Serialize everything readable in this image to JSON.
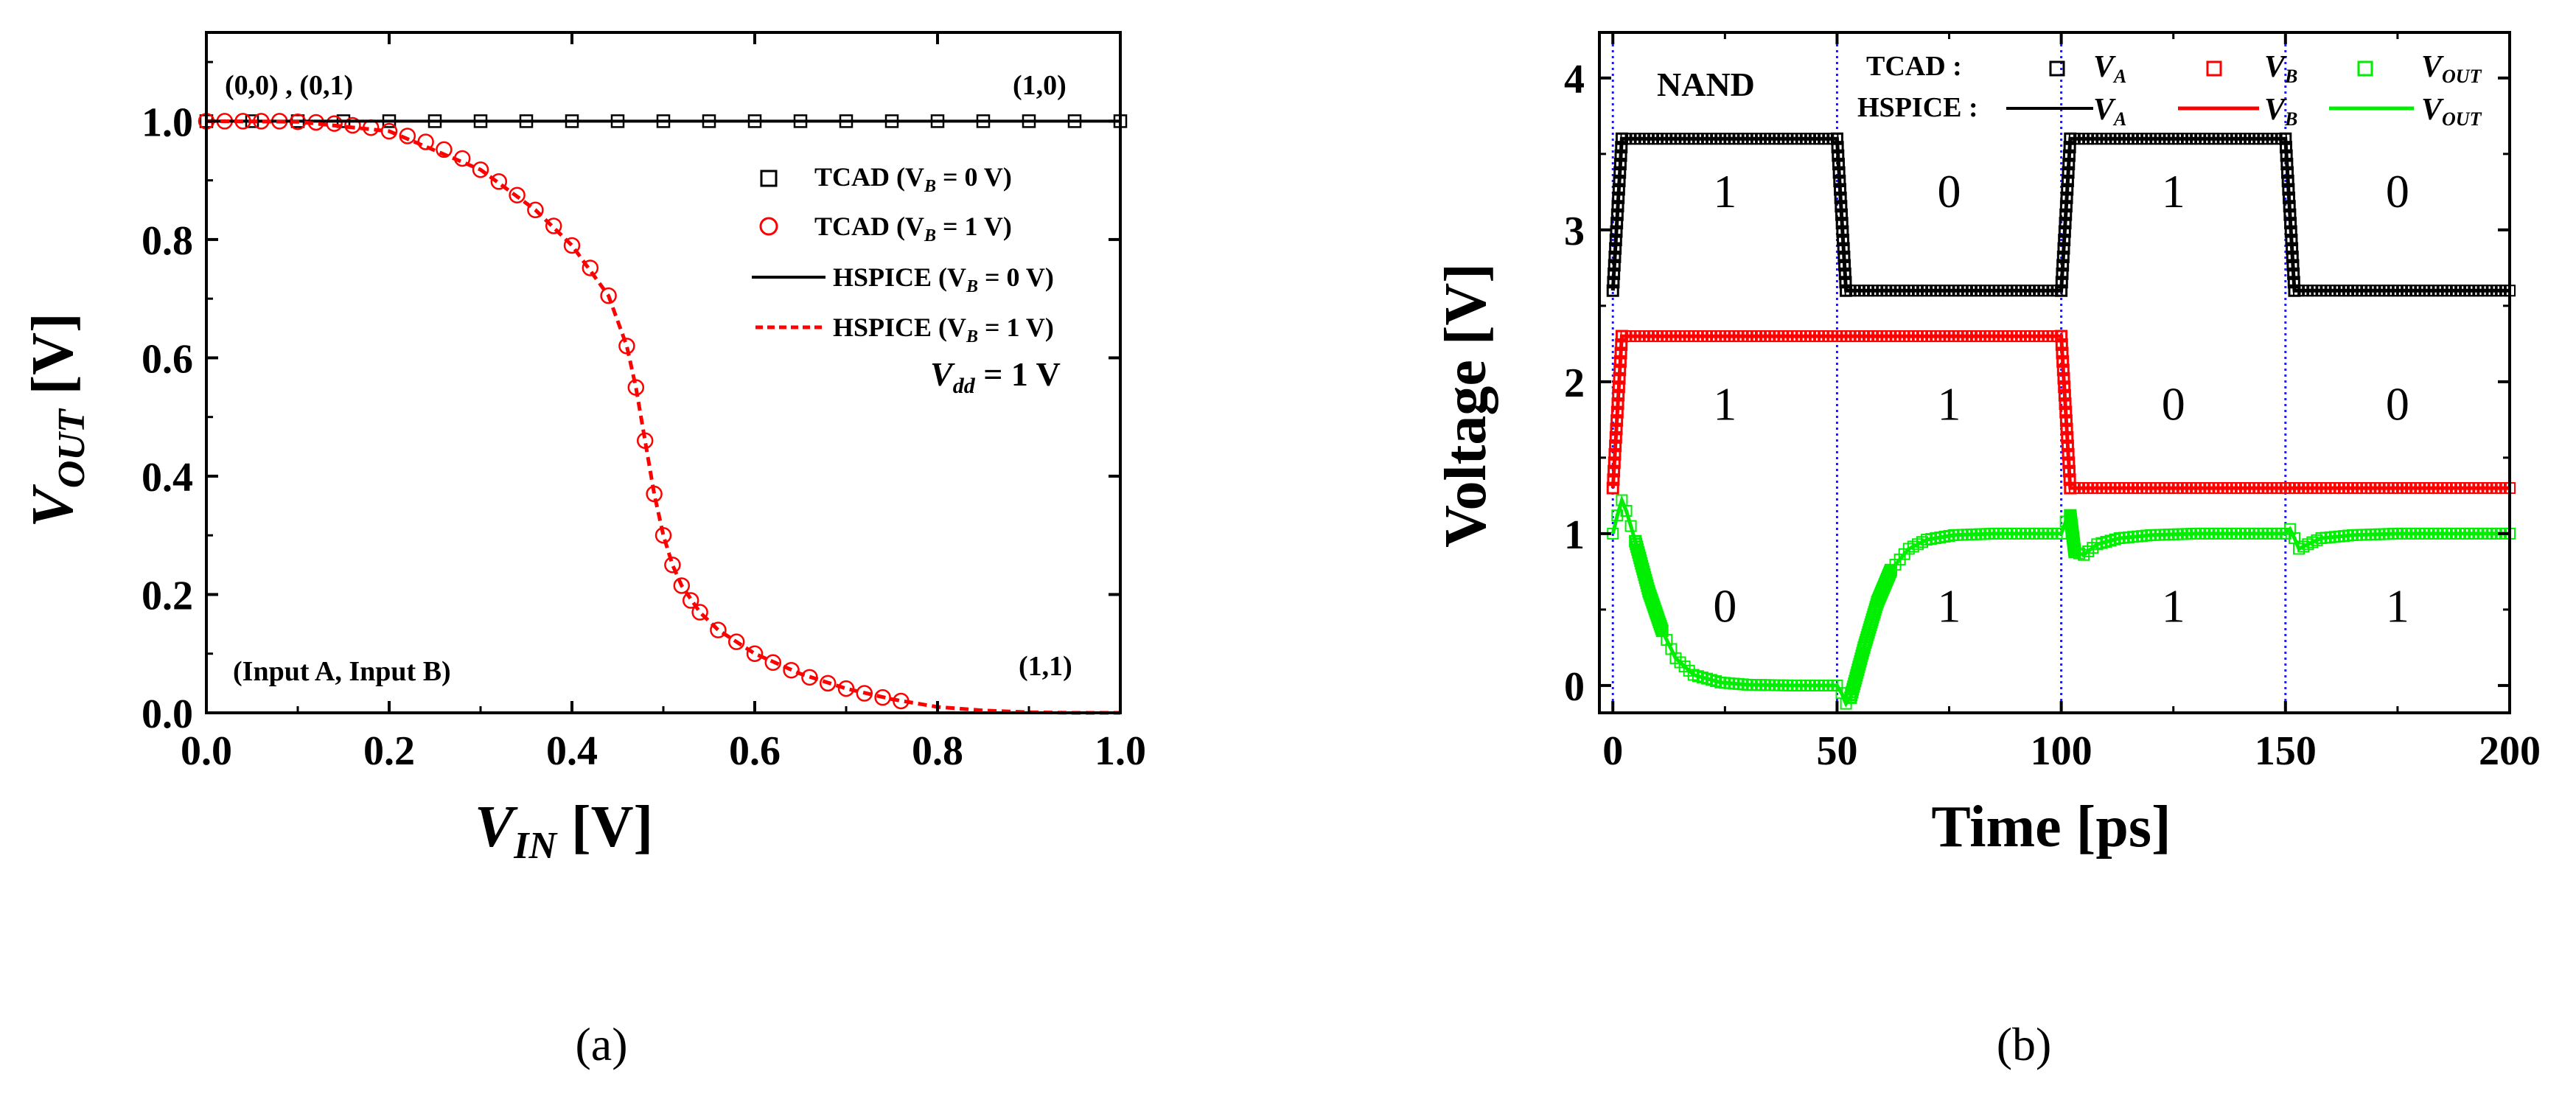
{
  "chart_data": [
    {
      "type": "scatter",
      "panel_label": "(a)",
      "xlabel_main": "V",
      "xlabel_sub": "IN",
      "xlabel_unit": " [V]",
      "ylabel_main": "V",
      "ylabel_sub": "OUT",
      "ylabel_unit": " [V]",
      "xlim": [
        0.0,
        1.0
      ],
      "ylim": [
        0.0,
        1.15
      ],
      "xticks": [
        0.0,
        0.2,
        0.4,
        0.6,
        0.8,
        1.0
      ],
      "xtick_labels": [
        "0.0",
        "0.2",
        "0.4",
        "0.6",
        "0.8",
        "1.0"
      ],
      "yticks": [
        0.0,
        0.2,
        0.4,
        0.6,
        0.8,
        1.0
      ],
      "ytick_labels": [
        "0.0",
        "0.2",
        "0.4",
        "0.6",
        "0.8",
        "1.0"
      ],
      "annotations": {
        "top_left": "(0,0) , (0,1)",
        "top_right": "(1,0)",
        "bottom_left": "(Input A, Input B)",
        "bottom_right": "(1,1)",
        "vdd_main": "V",
        "vdd_sub": "dd",
        "vdd_rest": " = 1 V"
      },
      "legend": [
        {
          "label_pre": "TCAD   (V",
          "label_sub": "B",
          "label_post": " = 0 V)",
          "marker": "square",
          "line": "none",
          "color": "#000000"
        },
        {
          "label_pre": "TCAD   (V",
          "label_sub": "B",
          "label_post": " = 1 V)",
          "marker": "circle",
          "line": "none",
          "color": "#ff0000"
        },
        {
          "label_pre": "HSPICE (V",
          "label_sub": "B",
          "label_post": " = 0 V)",
          "marker": "none",
          "line": "solid",
          "color": "#000000"
        },
        {
          "label_pre": "HSPICE (V",
          "label_sub": "B",
          "label_post": " = 1 V)",
          "marker": "none",
          "line": "dashed",
          "color": "#ff0000"
        }
      ],
      "series": [
        {
          "name": "TCAD (VB = 0 V)",
          "style": "square",
          "color": "#000000",
          "x": [
            0.0,
            0.05,
            0.1,
            0.15,
            0.2,
            0.25,
            0.3,
            0.35,
            0.4,
            0.45,
            0.5,
            0.55,
            0.6,
            0.65,
            0.7,
            0.75,
            0.8,
            0.85,
            0.9,
            0.95,
            1.0
          ],
          "y": [
            1.0,
            1.0,
            1.0,
            1.0,
            1.0,
            1.0,
            1.0,
            1.0,
            1.0,
            1.0,
            1.0,
            1.0,
            1.0,
            1.0,
            1.0,
            1.0,
            1.0,
            1.0,
            1.0,
            1.0,
            1.0
          ]
        },
        {
          "name": "TCAD (VB = 1 V)",
          "style": "circle",
          "color": "#ff0000",
          "x": [
            0.0,
            0.02,
            0.04,
            0.06,
            0.08,
            0.1,
            0.12,
            0.14,
            0.16,
            0.18,
            0.2,
            0.22,
            0.24,
            0.26,
            0.28,
            0.3,
            0.32,
            0.34,
            0.36,
            0.38,
            0.4,
            0.42,
            0.44,
            0.46,
            0.47,
            0.48,
            0.49,
            0.5,
            0.51,
            0.52,
            0.53,
            0.54,
            0.56,
            0.58,
            0.6,
            0.62,
            0.64,
            0.66,
            0.68,
            0.7,
            0.72,
            0.74,
            0.76
          ],
          "y": [
            1.0,
            1.0,
            1.0,
            1.0,
            1.0,
            0.999,
            0.998,
            0.996,
            0.993,
            0.989,
            0.983,
            0.975,
            0.965,
            0.952,
            0.937,
            0.918,
            0.898,
            0.875,
            0.85,
            0.823,
            0.79,
            0.752,
            0.705,
            0.62,
            0.55,
            0.46,
            0.37,
            0.3,
            0.25,
            0.215,
            0.19,
            0.17,
            0.14,
            0.12,
            0.1,
            0.085,
            0.072,
            0.06,
            0.05,
            0.041,
            0.033,
            0.026,
            0.02
          ]
        },
        {
          "name": "HSPICE (VB = 0 V)",
          "style": "solid",
          "color": "#000000",
          "x": [
            0.0,
            1.0
          ],
          "y": [
            1.0,
            1.0
          ]
        },
        {
          "name": "HSPICE (VB = 1 V)",
          "style": "dashed",
          "color": "#ff0000",
          "x": [
            0.0,
            0.1,
            0.2,
            0.3,
            0.36,
            0.4,
            0.44,
            0.46,
            0.47,
            0.48,
            0.49,
            0.5,
            0.51,
            0.52,
            0.54,
            0.56,
            0.6,
            0.65,
            0.7,
            0.75,
            0.8,
            0.85,
            0.9,
            0.95,
            1.0
          ],
          "y": [
            1.0,
            0.999,
            0.983,
            0.918,
            0.85,
            0.79,
            0.705,
            0.62,
            0.55,
            0.46,
            0.37,
            0.3,
            0.25,
            0.215,
            0.17,
            0.14,
            0.1,
            0.066,
            0.041,
            0.023,
            0.01,
            0.004,
            0.001,
            0.0,
            0.0
          ]
        }
      ]
    },
    {
      "type": "line",
      "panel_label": "(b)",
      "xlabel": "Time [ps]",
      "ylabel": "Voltage [V]",
      "xlim": [
        -3,
        200
      ],
      "ylim": [
        -0.18,
        4.3
      ],
      "xticks": [
        0,
        50,
        100,
        150,
        200
      ],
      "xtick_labels": [
        "0",
        "50",
        "100",
        "150",
        "200"
      ],
      "yticks": [
        0,
        1,
        2,
        3,
        4
      ],
      "ytick_labels": [
        "0",
        "1",
        "2",
        "3",
        "4"
      ],
      "vlines": [
        0,
        50,
        100,
        150
      ],
      "gate_label": "NAND",
      "legend": {
        "tcad_label": "TCAD :",
        "hspice_label": "HSPICE :",
        "entries": [
          {
            "main": "V",
            "sub": "A",
            "color": "#000000"
          },
          {
            "main": "V",
            "sub": "B",
            "color": "#ff0000"
          },
          {
            "main": "V",
            "sub": "OUT",
            "color": "#00ee00"
          }
        ]
      },
      "segment_labels": [
        {
          "x": 25,
          "y": 3.15,
          "text": "1"
        },
        {
          "x": 75,
          "y": 3.15,
          "text": "0"
        },
        {
          "x": 125,
          "y": 3.15,
          "text": "1"
        },
        {
          "x": 175,
          "y": 3.15,
          "text": "0"
        },
        {
          "x": 25,
          "y": 1.75,
          "text": "1"
        },
        {
          "x": 75,
          "y": 1.75,
          "text": "1"
        },
        {
          "x": 125,
          "y": 1.75,
          "text": "0"
        },
        {
          "x": 175,
          "y": 1.75,
          "text": "0"
        },
        {
          "x": 25,
          "y": 0.42,
          "text": "0"
        },
        {
          "x": 75,
          "y": 0.42,
          "text": "1"
        },
        {
          "x": 125,
          "y": 0.42,
          "text": "1"
        },
        {
          "x": 175,
          "y": 0.42,
          "text": "1"
        }
      ],
      "series": [
        {
          "name": "VA",
          "color": "#000000",
          "points": [
            [
              0,
              2.6
            ],
            [
              2,
              3.6
            ],
            [
              50,
              3.6
            ],
            [
              52,
              2.6
            ],
            [
              100,
              2.6
            ],
            [
              102,
              3.6
            ],
            [
              150,
              3.6
            ],
            [
              152,
              2.6
            ],
            [
              200,
              2.6
            ]
          ]
        },
        {
          "name": "VB",
          "color": "#ff0000",
          "points": [
            [
              0,
              1.3
            ],
            [
              2,
              2.3
            ],
            [
              100,
              2.3
            ],
            [
              102,
              1.3
            ],
            [
              200,
              1.3
            ]
          ]
        },
        {
          "name": "VOUT",
          "color": "#00ee00",
          "points": [
            [
              0,
              1.0
            ],
            [
              1,
              1.12
            ],
            [
              2,
              1.22
            ],
            [
              3,
              1.15
            ],
            [
              5,
              0.95
            ],
            [
              8,
              0.62
            ],
            [
              11,
              0.36
            ],
            [
              14,
              0.18
            ],
            [
              18,
              0.07
            ],
            [
              24,
              0.02
            ],
            [
              30,
              0.005
            ],
            [
              40,
              0.0
            ],
            [
              50,
              0.0
            ],
            [
              51,
              -0.05
            ],
            [
              52,
              -0.12
            ],
            [
              53,
              -0.08
            ],
            [
              56,
              0.25
            ],
            [
              59,
              0.55
            ],
            [
              62,
              0.76
            ],
            [
              66,
              0.9
            ],
            [
              70,
              0.96
            ],
            [
              76,
              0.99
            ],
            [
              85,
              1.0
            ],
            [
              100,
              1.0
            ],
            [
              101,
              1.08
            ],
            [
              102,
              1.12
            ],
            [
              103,
              0.88
            ],
            [
              105,
              0.86
            ],
            [
              108,
              0.93
            ],
            [
              113,
              0.97
            ],
            [
              120,
              0.99
            ],
            [
              130,
              1.0
            ],
            [
              150,
              1.0
            ],
            [
              151,
              1.03
            ],
            [
              152,
              0.97
            ],
            [
              153,
              0.9
            ],
            [
              155,
              0.93
            ],
            [
              158,
              0.97
            ],
            [
              165,
              0.99
            ],
            [
              175,
              1.0
            ],
            [
              200,
              1.0
            ]
          ]
        }
      ]
    }
  ]
}
